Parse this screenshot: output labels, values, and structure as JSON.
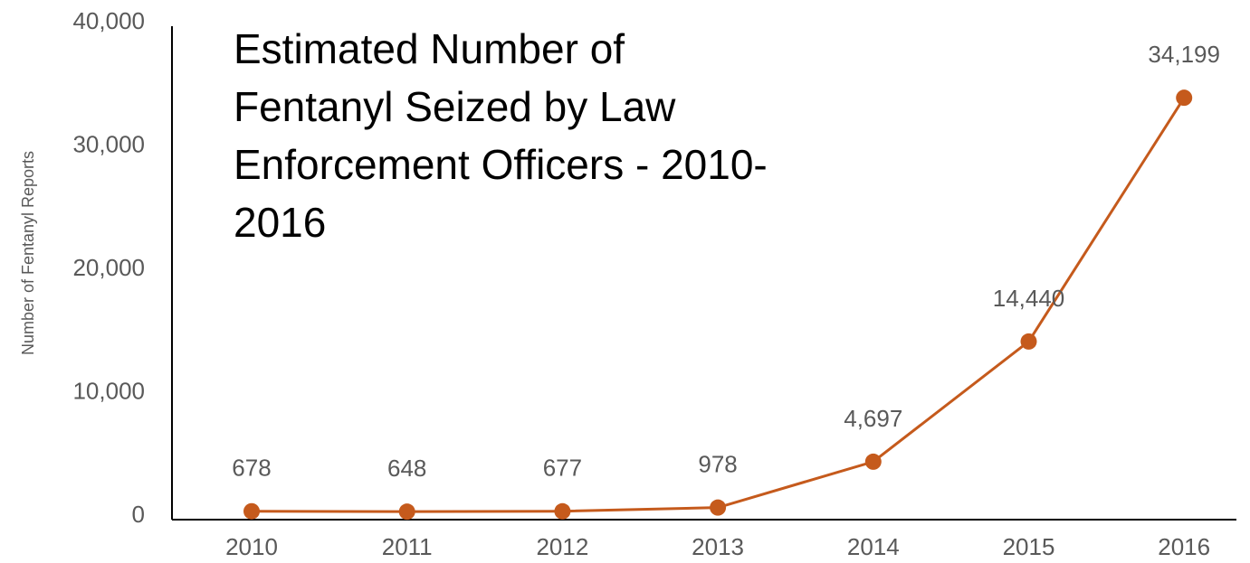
{
  "chart_data": {
    "type": "line",
    "title": "Estimated Number of Fentanyl Seized by Law Enforcement Officers - 2010-2016",
    "y_label": "Number of Fentanyl Reports",
    "categories": [
      "2010",
      "2011",
      "2012",
      "2013",
      "2014",
      "2015",
      "2016"
    ],
    "values": [
      678,
      648,
      677,
      978,
      4697,
      14440,
      34199
    ],
    "value_labels": [
      "678",
      "648",
      "677",
      "978",
      "4,697",
      "14,440",
      "34,199"
    ],
    "color": "#c55a1c",
    "ylim": [
      0,
      40000
    ],
    "yticks": [
      0,
      {
        "value": 10000,
        "label": "10,000"
      },
      {
        "value": 20000,
        "label": "20,000"
      },
      {
        "value": 30000,
        "label": "30,000"
      },
      {
        "value": 40000,
        "label": "40,000"
      }
    ]
  }
}
